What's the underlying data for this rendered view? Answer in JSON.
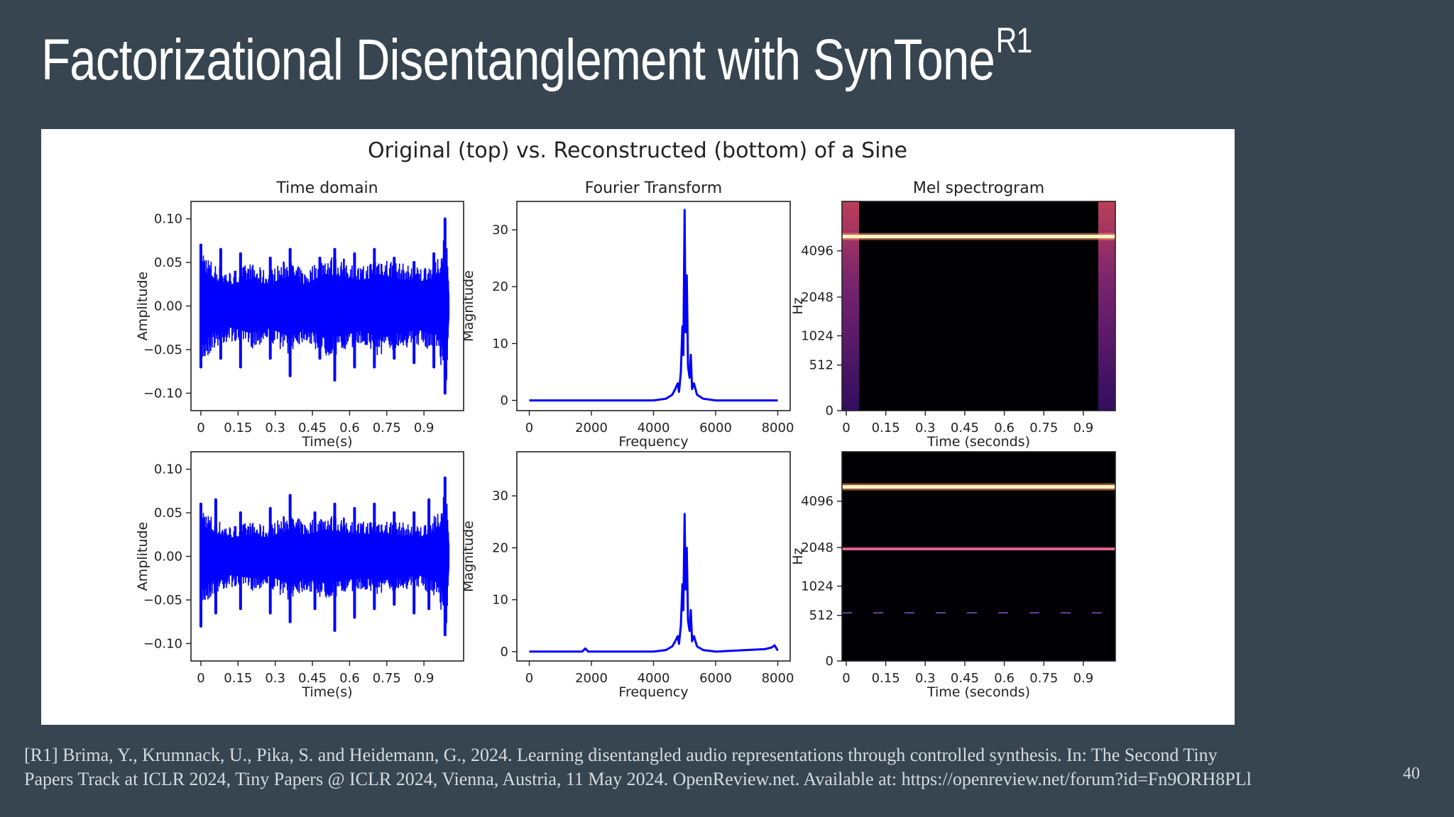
{
  "slide": {
    "title": "Factorizational Disentanglement with SynTone",
    "title_sup": "R1",
    "footer_line1": "[R1] Brima, Y., Krumnack, U., Pika, S. and Heidemann, G., 2024. Learning disentangled audio representations through controlled synthesis. In: The Second Tiny",
    "footer_line2": "Papers Track at ICLR 2024, Tiny Papers @ ICLR 2024, Vienna, Austria, 11 May 2024. OpenReview.net. Available at: https://openreview.net/forum?id=Fn9ORH8PLl",
    "page_number": "40"
  },
  "figure": {
    "suptitle": "Original (top) vs. Reconstructed (bottom) of a Sine"
  },
  "colors": {
    "signal": "#0000ff",
    "mel_line": "#fff3c0",
    "mel_bg": "#000004",
    "mel_edge": "#8a3a8a"
  },
  "chart_data": [
    {
      "type": "line",
      "id": "time_top",
      "title": "Time domain",
      "xlabel": "Time(s)",
      "ylabel": "Amplitude",
      "xlim": [
        -0.04,
        1.06
      ],
      "ylim": [
        -0.12,
        0.12
      ],
      "xticks": [
        0,
        0.15,
        0.3,
        0.45,
        0.6,
        0.75,
        0.9
      ],
      "xtick_labels": [
        "0",
        "0.15",
        "0.3",
        "0.45",
        "0.6",
        "0.75",
        "0.9"
      ],
      "yticks": [
        0.1,
        0.05,
        0.0,
        -0.05,
        -0.1
      ],
      "ytick_labels": [
        "0.10",
        "0.05",
        "0.00",
        "−0.05",
        "−0.10"
      ],
      "envelope_points": [
        [
          0,
          0.07
        ],
        [
          0.05,
          0.05
        ],
        [
          0.12,
          0.04
        ],
        [
          0.2,
          0.05
        ],
        [
          0.27,
          0.04
        ],
        [
          0.35,
          0.055
        ],
        [
          0.42,
          0.04
        ],
        [
          0.5,
          0.06
        ],
        [
          0.58,
          0.055
        ],
        [
          0.65,
          0.045
        ],
        [
          0.72,
          0.06
        ],
        [
          0.8,
          0.05
        ],
        [
          0.88,
          0.045
        ],
        [
          0.96,
          0.055
        ],
        [
          0.99,
          0.1
        ],
        [
          1.0,
          0.02
        ]
      ],
      "peaks": [
        [
          0.0,
          0.07,
          -0.07
        ],
        [
          0.08,
          0.065,
          -0.06
        ],
        [
          0.16,
          0.06,
          -0.07
        ],
        [
          0.28,
          0.055,
          -0.06
        ],
        [
          0.36,
          0.065,
          -0.08
        ],
        [
          0.48,
          0.055,
          -0.06
        ],
        [
          0.54,
          0.065,
          -0.085
        ],
        [
          0.62,
          0.06,
          -0.07
        ],
        [
          0.7,
          0.065,
          -0.07
        ],
        [
          0.78,
          0.055,
          -0.06
        ],
        [
          0.86,
          0.05,
          -0.065
        ],
        [
          0.94,
          0.06,
          -0.07
        ],
        [
          0.985,
          0.1,
          -0.1
        ]
      ]
    },
    {
      "type": "line",
      "id": "fft_top",
      "title": "Fourier Transform",
      "xlabel": "Frequency",
      "ylabel": "Magnitude",
      "xlim": [
        -400,
        8400
      ],
      "ylim": [
        -1.8,
        35
      ],
      "xticks": [
        0,
        2000,
        4000,
        6000,
        8000
      ],
      "xtick_labels": [
        "0",
        "2000",
        "4000",
        "6000",
        "8000"
      ],
      "yticks": [
        0,
        10,
        20,
        30
      ],
      "ytick_labels": [
        "0",
        "10",
        "20",
        "30"
      ],
      "points": [
        [
          0,
          0
        ],
        [
          4000,
          0
        ],
        [
          4400,
          0.3
        ],
        [
          4600,
          1
        ],
        [
          4700,
          2
        ],
        [
          4780,
          3
        ],
        [
          4820,
          1.5
        ],
        [
          4880,
          5
        ],
        [
          4930,
          13
        ],
        [
          4960,
          8
        ],
        [
          5000,
          33.5
        ],
        [
          5030,
          12
        ],
        [
          5070,
          22
        ],
        [
          5110,
          6
        ],
        [
          5160,
          4
        ],
        [
          5200,
          8
        ],
        [
          5240,
          2
        ],
        [
          5300,
          3
        ],
        [
          5400,
          1
        ],
        [
          5600,
          0.3
        ],
        [
          6000,
          0
        ],
        [
          8000,
          0
        ]
      ]
    },
    {
      "type": "heatmap",
      "id": "mel_top",
      "title": "Mel spectrogram",
      "xlabel": "Time (seconds)",
      "ylabel": "Hz",
      "xticks": [
        0,
        0.15,
        0.3,
        0.45,
        0.6,
        0.75,
        0.9
      ],
      "xtick_labels": [
        "0",
        "0.15",
        "0.3",
        "0.45",
        "0.6",
        "0.75",
        "0.9"
      ],
      "yticks": [
        0,
        512,
        1024,
        2048,
        4096
      ],
      "ytick_labels": [
        "0",
        "512",
        "1024",
        "2048",
        "4096"
      ],
      "bands_hz": [
        5000
      ]
    },
    {
      "type": "line",
      "id": "time_bottom",
      "title": "",
      "xlabel": "Time(s)",
      "ylabel": "Amplitude",
      "xlim": [
        -0.04,
        1.06
      ],
      "ylim": [
        -0.12,
        0.12
      ],
      "xticks": [
        0,
        0.15,
        0.3,
        0.45,
        0.6,
        0.75,
        0.9
      ],
      "xtick_labels": [
        "0",
        "0.15",
        "0.3",
        "0.45",
        "0.6",
        "0.75",
        "0.9"
      ],
      "yticks": [
        0.1,
        0.05,
        0.0,
        -0.05,
        -0.1
      ],
      "ytick_labels": [
        "0.10",
        "0.05",
        "0.00",
        "−0.05",
        "−0.10"
      ],
      "envelope_points": [
        [
          0,
          0.06
        ],
        [
          0.05,
          0.045
        ],
        [
          0.12,
          0.035
        ],
        [
          0.2,
          0.04
        ],
        [
          0.27,
          0.035
        ],
        [
          0.35,
          0.05
        ],
        [
          0.42,
          0.04
        ],
        [
          0.5,
          0.05
        ],
        [
          0.58,
          0.045
        ],
        [
          0.65,
          0.04
        ],
        [
          0.72,
          0.045
        ],
        [
          0.8,
          0.04
        ],
        [
          0.88,
          0.035
        ],
        [
          0.96,
          0.05
        ],
        [
          0.99,
          0.09
        ],
        [
          1.0,
          0.02
        ]
      ],
      "peaks": [
        [
          0.0,
          0.06,
          -0.08
        ],
        [
          0.06,
          0.065,
          -0.065
        ],
        [
          0.16,
          0.05,
          -0.06
        ],
        [
          0.28,
          0.055,
          -0.065
        ],
        [
          0.36,
          0.07,
          -0.075
        ],
        [
          0.46,
          0.05,
          -0.06
        ],
        [
          0.54,
          0.06,
          -0.085
        ],
        [
          0.62,
          0.055,
          -0.07
        ],
        [
          0.7,
          0.06,
          -0.06
        ],
        [
          0.78,
          0.05,
          -0.055
        ],
        [
          0.86,
          0.05,
          -0.065
        ],
        [
          0.92,
          0.065,
          -0.06
        ],
        [
          0.985,
          0.09,
          -0.09
        ]
      ]
    },
    {
      "type": "line",
      "id": "fft_bottom",
      "title": "",
      "xlabel": "Frequency",
      "ylabel": "Magnitude",
      "xlim": [
        -400,
        8400
      ],
      "ylim": [
        -1.8,
        38.5
      ],
      "xticks": [
        0,
        2000,
        4000,
        6000,
        8000
      ],
      "xtick_labels": [
        "0",
        "2000",
        "4000",
        "6000",
        "8000"
      ],
      "yticks": [
        0,
        10,
        20,
        30
      ],
      "ytick_labels": [
        "0",
        "10",
        "20",
        "30"
      ],
      "points": [
        [
          0,
          0
        ],
        [
          1700,
          0
        ],
        [
          1800,
          0.6
        ],
        [
          1900,
          0
        ],
        [
          4000,
          0
        ],
        [
          4400,
          0.3
        ],
        [
          4600,
          1
        ],
        [
          4700,
          2
        ],
        [
          4780,
          3
        ],
        [
          4820,
          1.5
        ],
        [
          4880,
          5
        ],
        [
          4930,
          13
        ],
        [
          4960,
          8
        ],
        [
          5000,
          26.5
        ],
        [
          5030,
          12
        ],
        [
          5070,
          20
        ],
        [
          5110,
          6
        ],
        [
          5160,
          4
        ],
        [
          5200,
          8
        ],
        [
          5240,
          2
        ],
        [
          5300,
          3
        ],
        [
          5400,
          1
        ],
        [
          5600,
          0.3
        ],
        [
          6000,
          0
        ],
        [
          7600,
          0.5
        ],
        [
          7800,
          0.8
        ],
        [
          7900,
          1.2
        ],
        [
          8000,
          0.2
        ]
      ]
    },
    {
      "type": "heatmap",
      "id": "mel_bottom",
      "title": "",
      "xlabel": "Time (seconds)",
      "ylabel": "Hz",
      "xticks": [
        0,
        0.15,
        0.3,
        0.45,
        0.6,
        0.75,
        0.9
      ],
      "xtick_labels": [
        "0",
        "0.15",
        "0.3",
        "0.45",
        "0.6",
        "0.75",
        "0.9"
      ],
      "yticks": [
        0,
        512,
        1024,
        2048,
        4096
      ],
      "ytick_labels": [
        "0",
        "512",
        "1024",
        "2048",
        "4096"
      ],
      "bands_hz": [
        5000,
        2000,
        550
      ]
    }
  ]
}
